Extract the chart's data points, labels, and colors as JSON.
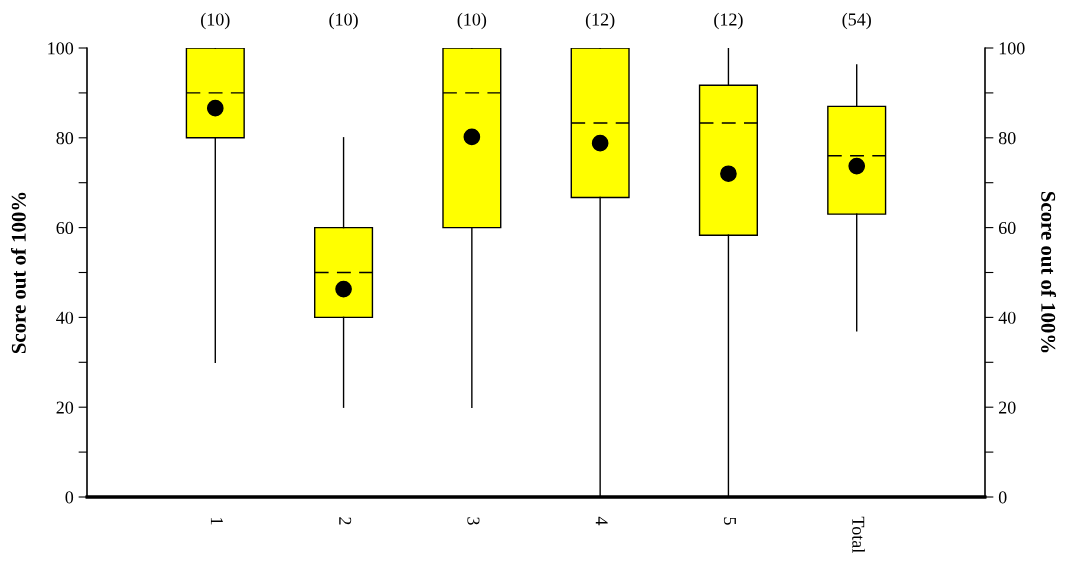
{
  "chart_data": {
    "type": "box",
    "ylabel": "Score out of 100%",
    "y2label": "Score out of 100%",
    "categories": [
      "1",
      "2",
      "3",
      "4",
      "5",
      "Total"
    ],
    "series": [
      {
        "color": "#ffff00",
        "boxes": [
          {
            "low": 30,
            "q1": 80,
            "median": 90,
            "q3": 100,
            "high": 100,
            "mean": 86.6
          },
          {
            "low": 20,
            "q1": 40,
            "median": 50,
            "q3": 60,
            "high": 80,
            "mean": 46.3
          },
          {
            "low": 20,
            "q1": 60,
            "median": 90,
            "q3": 100,
            "high": 100,
            "mean": 80.2
          },
          {
            "low": 0,
            "q1": 66.7,
            "median": 83.3,
            "q3": 100,
            "high": 100,
            "mean": 78.8
          },
          {
            "low": 0,
            "q1": 58.3,
            "median": 83.3,
            "q3": 91.7,
            "high": 100,
            "mean": 72
          },
          {
            "low": 37,
            "q1": 63,
            "median": 76,
            "q3": 87,
            "high": 96.2,
            "mean": 73.7
          }
        ]
      }
    ],
    "ylim": [
      0,
      100
    ],
    "yticks": [
      0,
      {
        "value": 10,
        "label": null
      },
      20,
      {
        "value": 30,
        "label": null
      },
      40,
      {
        "value": 50,
        "label": null
      },
      60,
      {
        "value": 70,
        "label": null
      },
      80,
      {
        "value": 90,
        "label": null
      },
      100
    ],
    "y2lim": [
      0,
      100
    ],
    "y2ticks": [
      0,
      {
        "value": 10,
        "label": null
      },
      20,
      {
        "value": 30,
        "label": null
      },
      40,
      {
        "value": 50,
        "label": null
      },
      60,
      {
        "value": 70,
        "label": null
      },
      80,
      {
        "value": 90,
        "label": null
      },
      100
    ],
    "annotations": [
      "(10)",
      "(10)",
      "(10)",
      "(12)",
      "(12)",
      "(54)"
    ],
    "grid": false,
    "legend": false,
    "marker": "circle"
  }
}
